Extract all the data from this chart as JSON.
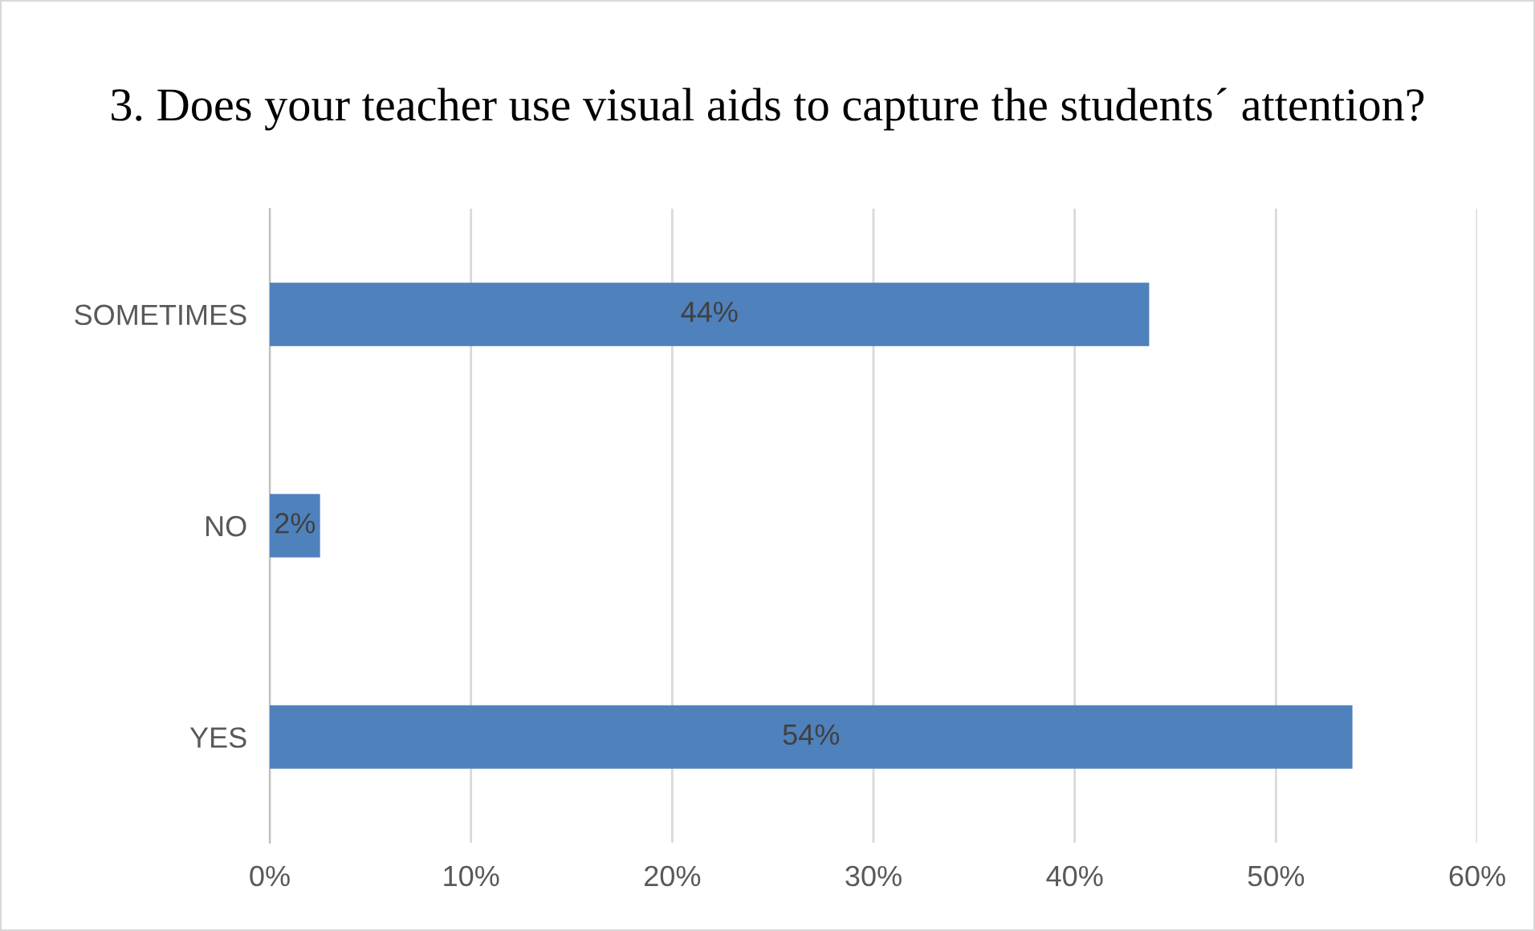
{
  "chart_data": {
    "type": "bar",
    "orientation": "horizontal",
    "title": "3. Does your teacher use visual aids to capture the students´ attention?",
    "categories": [
      "SOMETIMES",
      "NO",
      "YES"
    ],
    "values": [
      43.7,
      2.5,
      53.8
    ],
    "value_labels": [
      "44%",
      "2%",
      "54%"
    ],
    "color": "#4f81bd",
    "xlim": [
      0,
      60
    ],
    "xticks": [
      {
        "value": 0,
        "label": "0%"
      },
      {
        "value": 10,
        "label": "10%"
      },
      {
        "value": 20,
        "label": "20%"
      },
      {
        "value": 30,
        "label": "30%"
      },
      {
        "value": 40,
        "label": "40%"
      },
      {
        "value": 50,
        "label": "50%"
      },
      {
        "value": 60,
        "label": "60%"
      }
    ],
    "grid": "x"
  }
}
